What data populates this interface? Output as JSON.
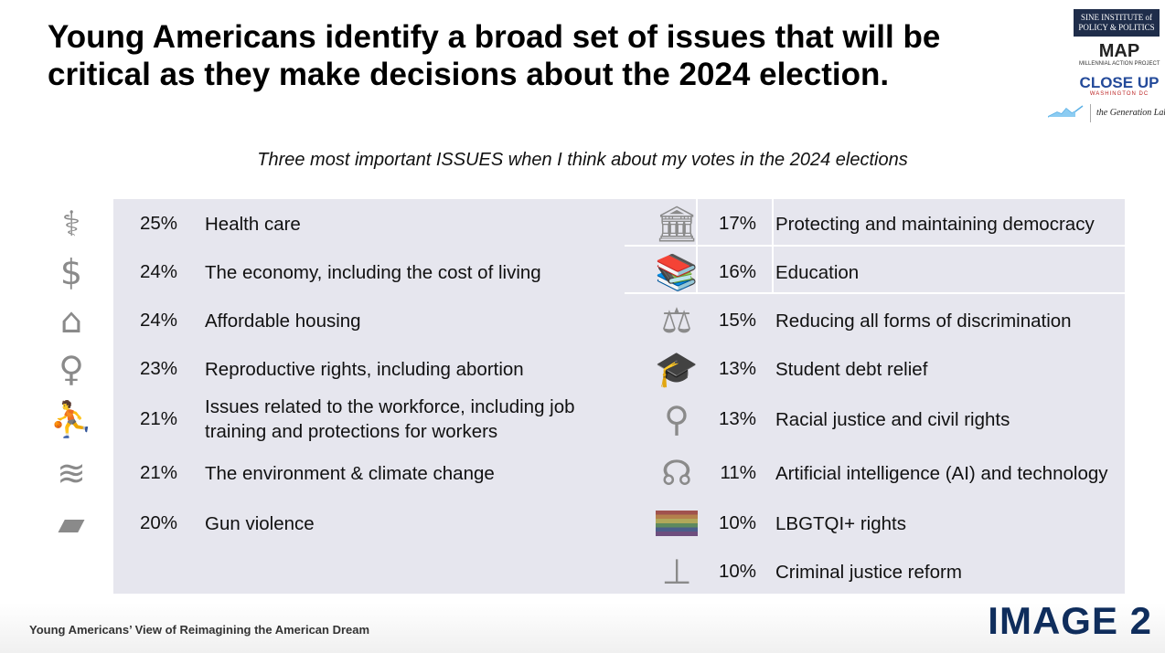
{
  "title": "Young Americans identify a broad set of issues that will be critical as they make decisions about the 2024 election.",
  "subtitle": "Three most important ISSUES when I think about my votes in the 2024 elections",
  "logos": {
    "sine": "SINE INSTITUTE of POLICY & POLITICS",
    "map": "MAP",
    "map_sub": "MILLENNIAL ACTION PROJECT",
    "closeup": "CLOSE UP",
    "closeup_sub": "WASHINGTON DC",
    "genlab": "the Generation Lab"
  },
  "left_issues": [
    {
      "pct": "25%",
      "label": "Health care",
      "icon": "caduceus-icon"
    },
    {
      "pct": "24%",
      "label": "The economy, including the cost of living",
      "icon": "wallet-icon"
    },
    {
      "pct": "24%",
      "label": "Affordable housing",
      "icon": "house-icon"
    },
    {
      "pct": "23%",
      "label": "Reproductive rights, including abortion",
      "icon": "female-symbol-icon"
    },
    {
      "pct": "21%",
      "label": "Issues related to the workforce, including job training and protections for workers",
      "icon": "worker-climbing-icon"
    },
    {
      "pct": "21%",
      "label": "The environment & climate change",
      "icon": "waves-icon"
    },
    {
      "pct": "20%",
      "label": "Gun violence",
      "icon": "gun-icon"
    }
  ],
  "right_issues": [
    {
      "pct": "17%",
      "label": "Protecting and maintaining democracy",
      "icon": "capitol-icon"
    },
    {
      "pct": "16%",
      "label": "Education",
      "icon": "apple-book-icon"
    },
    {
      "pct": "15%",
      "label": "Reducing all forms of discrimination",
      "icon": "scales-icon"
    },
    {
      "pct": "13%",
      "label": "Student debt relief",
      "icon": "graduation-cap-icon"
    },
    {
      "pct": "13%",
      "label": "Racial justice and civil rights",
      "icon": "balance-people-icon"
    },
    {
      "pct": "11%",
      "label": "Artificial intelligence (AI) and technology",
      "icon": "brain-circuit-icon"
    },
    {
      "pct": "10%",
      "label": "LBGTQI+ rights",
      "icon": "rainbow-flag-icon"
    },
    {
      "pct": "10%",
      "label": "Criminal justice reform",
      "icon": "gavel-icon"
    }
  ],
  "footer": {
    "text": "Young Americans’ View of Reimagining the American Dream",
    "badge": "IMAGE 2"
  }
}
